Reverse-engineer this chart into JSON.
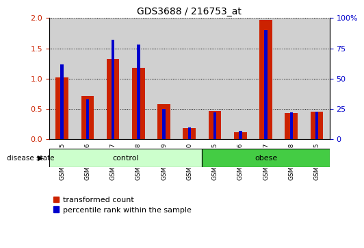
{
  "title": "GDS3688 / 216753_at",
  "samples": [
    "GSM243215",
    "GSM243216",
    "GSM243217",
    "GSM243218",
    "GSM243219",
    "GSM243220",
    "GSM243225",
    "GSM243226",
    "GSM243227",
    "GSM243228",
    "GSM243275"
  ],
  "transformed_count": [
    1.02,
    0.72,
    1.33,
    1.18,
    0.58,
    0.18,
    0.47,
    0.12,
    1.97,
    0.43,
    0.46
  ],
  "percentile_rank": [
    62,
    33,
    82,
    78,
    25,
    10,
    22,
    7,
    90,
    22,
    23
  ],
  "groups": [
    {
      "label": "control",
      "start": 0,
      "end": 6,
      "color": "#ccffcc"
    },
    {
      "label": "obese",
      "start": 6,
      "end": 11,
      "color": "#44cc44"
    }
  ],
  "left_ylim": [
    0,
    2.0
  ],
  "right_ylim": [
    0,
    100
  ],
  "left_yticks": [
    0,
    0.5,
    1.0,
    1.5,
    2.0
  ],
  "right_yticks": [
    0,
    25,
    50,
    75,
    100
  ],
  "bar_color_red": "#cc2200",
  "bar_color_blue": "#0000cc",
  "bg_color": "#d0d0d0",
  "disease_state_label": "disease state",
  "legend_red": "transformed count",
  "legend_blue": "percentile rank within the sample",
  "fig_width": 5.39,
  "fig_height": 3.54,
  "dpi": 100
}
